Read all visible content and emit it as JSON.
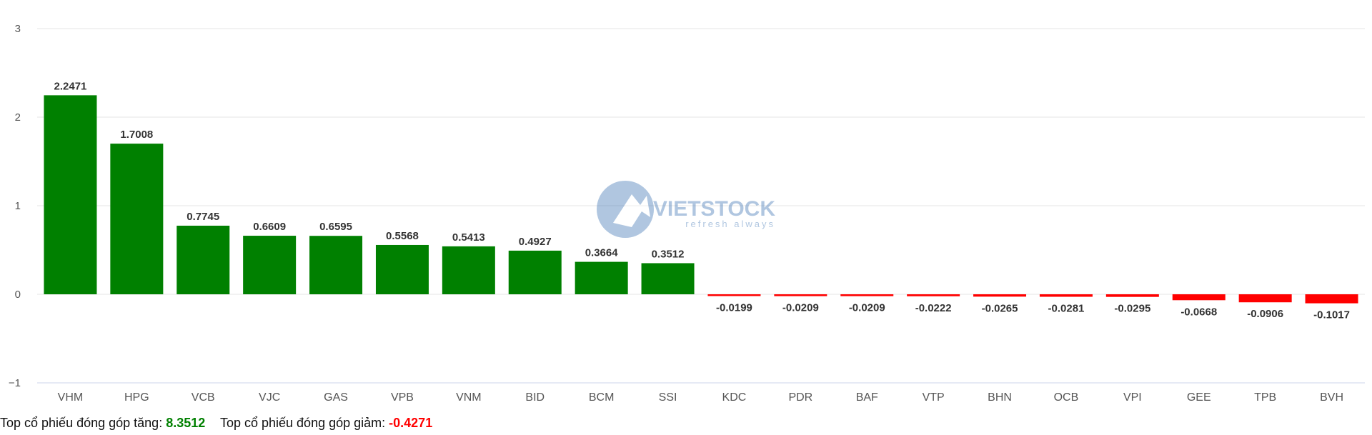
{
  "chart_data": {
    "type": "bar",
    "categories": [
      "VHM",
      "HPG",
      "VCB",
      "VJC",
      "GAS",
      "VPB",
      "VNM",
      "BID",
      "BCM",
      "SSI",
      "KDC",
      "PDR",
      "BAF",
      "VTP",
      "BHN",
      "OCB",
      "VPI",
      "GEE",
      "TPB",
      "BVH"
    ],
    "values": [
      2.2471,
      1.7008,
      0.7745,
      0.6609,
      0.6595,
      0.5568,
      0.5413,
      0.4927,
      0.3664,
      0.3512,
      -0.0199,
      -0.0209,
      -0.0209,
      -0.0222,
      -0.0265,
      -0.0281,
      -0.0295,
      -0.0668,
      -0.0906,
      -0.1017
    ],
    "data_labels": [
      "2.2471",
      "1.7008",
      "0.7745",
      "0.6609",
      "0.6595",
      "0.5568",
      "0.5413",
      "0.4927",
      "0.3664",
      "0.3512",
      "-0.0199",
      "-0.0209",
      "-0.0209",
      "-0.0222",
      "-0.0265",
      "-0.0281",
      "-0.0295",
      "-0.0668",
      "-0.0906",
      "-0.1017"
    ],
    "yticks": [
      -1,
      0,
      1,
      2,
      3
    ],
    "ytick_labels": [
      "−1",
      "0",
      "1",
      "2",
      "3"
    ],
    "ylim": [
      -1,
      3
    ],
    "grid": true,
    "colors": {
      "positive": "#008000",
      "negative": "#ff0000"
    },
    "watermark": "VIETSTOCK refresh always"
  },
  "footer": {
    "up_label": "Top cổ phiếu đóng góp tăng:",
    "up_value": "8.3512",
    "down_label": "Top cổ phiếu đóng góp giảm:",
    "down_value": "-0.4271",
    "up_color": "#008000",
    "down_color": "#ff0000"
  }
}
